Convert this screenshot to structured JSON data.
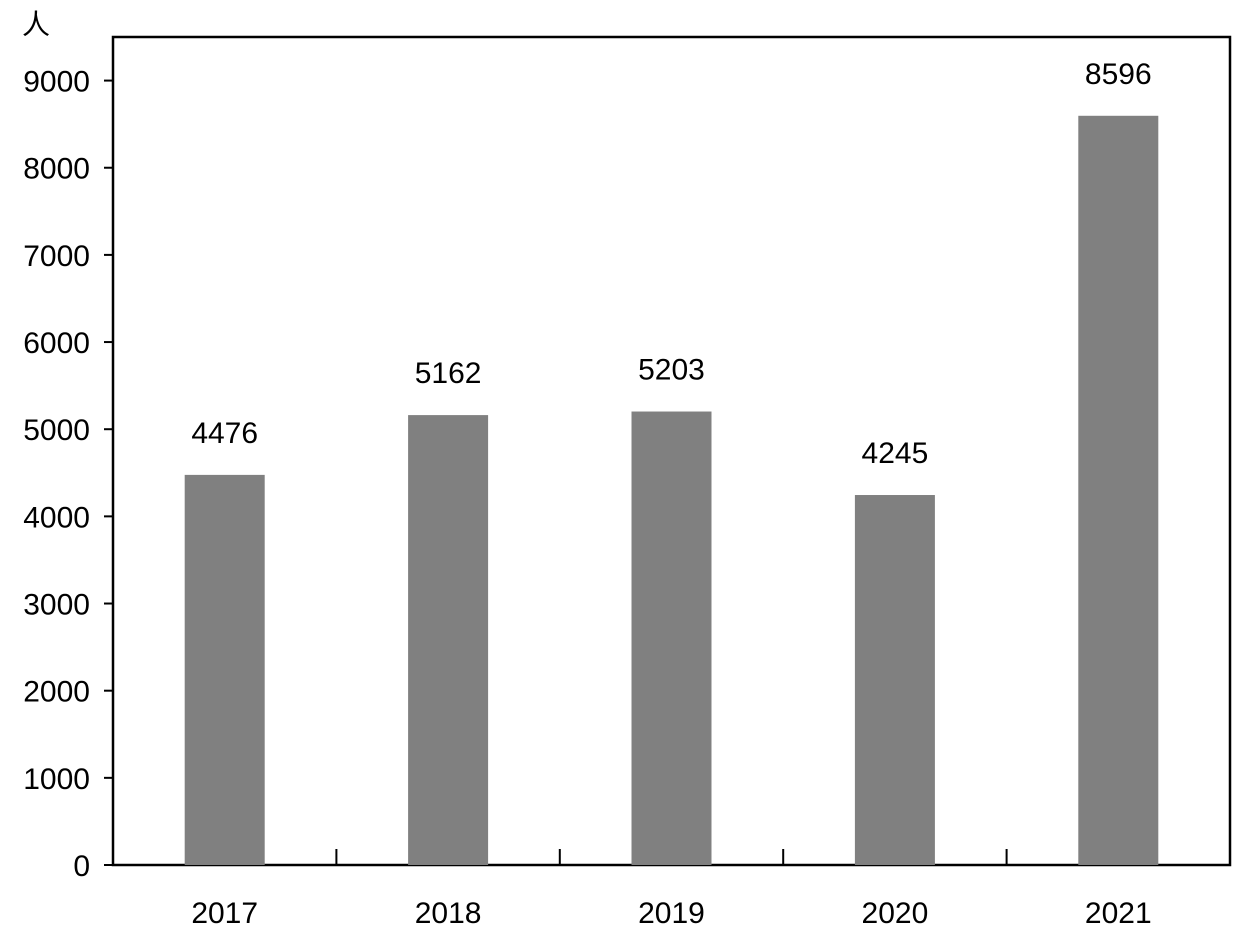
{
  "chart_data": {
    "type": "bar",
    "unit_label": "人",
    "categories": [
      "2017",
      "2018",
      "2019",
      "2020",
      "2021"
    ],
    "values": [
      4476,
      5162,
      5203,
      4245,
      8596
    ],
    "data_labels": [
      "4476",
      "5162",
      "5203",
      "4245",
      "8596"
    ],
    "ylim": [
      0,
      9500
    ],
    "yticks": [
      0,
      1000,
      2000,
      3000,
      4000,
      5000,
      6000,
      7000,
      8000,
      9000
    ],
    "ytick_labels": [
      "0",
      "1000",
      "2000",
      "3000",
      "4000",
      "5000",
      "6000",
      "7000",
      "8000",
      "9000"
    ],
    "bar_color": "#808080",
    "grid": false,
    "legend": "none"
  }
}
